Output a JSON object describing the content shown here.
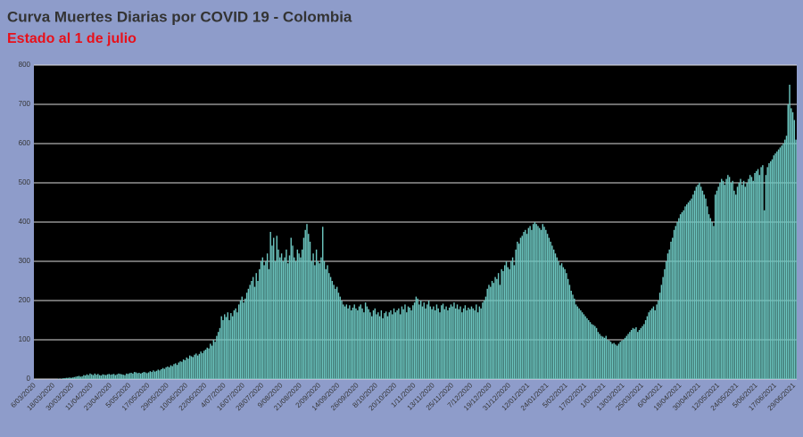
{
  "chart_data": {
    "type": "bar",
    "title": "Curva Muertes Diarias por COVID 19 - Colombia",
    "subtitle": "Estado al 1 de julio",
    "color": "#6cc6c0",
    "ylim": [
      0,
      800
    ],
    "yticks": [
      0,
      100,
      200,
      300,
      400,
      500,
      600,
      700,
      800
    ],
    "grid": true,
    "categories": [
      "6/03/2020",
      null,
      null,
      null,
      null,
      null,
      null,
      null,
      null,
      null,
      null,
      null,
      "18/03/2020",
      null,
      null,
      null,
      null,
      null,
      null,
      null,
      null,
      null,
      null,
      null,
      "30/03/2020",
      null,
      null,
      null,
      null,
      null,
      null,
      null,
      null,
      null,
      null,
      null,
      "11/04/2020",
      null,
      null,
      null,
      null,
      null,
      null,
      null,
      null,
      null,
      null,
      null,
      "23/04/2020",
      null,
      null,
      null,
      null,
      null,
      null,
      null,
      null,
      null,
      null,
      null,
      "5/05/2020",
      null,
      null,
      null,
      null,
      null,
      null,
      null,
      null,
      null,
      null,
      null,
      "17/05/2020",
      null,
      null,
      null,
      null,
      null,
      null,
      null,
      null,
      null,
      null,
      null,
      "29/05/2020",
      null,
      null,
      null,
      null,
      null,
      null,
      null,
      null,
      null,
      null,
      null,
      "10/06/2020",
      null,
      null,
      null,
      null,
      null,
      null,
      null,
      null,
      null,
      null,
      null,
      "22/06/2020",
      null,
      null,
      null,
      null,
      null,
      null,
      null,
      null,
      null,
      null,
      null,
      "4/07/2020",
      null,
      null,
      null,
      null,
      null,
      null,
      null,
      null,
      null,
      null,
      null,
      "16/07/2020",
      null,
      null,
      null,
      null,
      null,
      null,
      null,
      null,
      null,
      null,
      null,
      "28/07/2020",
      null,
      null,
      null,
      null,
      null,
      null,
      null,
      null,
      null,
      null,
      null,
      "9/08/2020",
      null,
      null,
      null,
      null,
      null,
      null,
      null,
      null,
      null,
      null,
      null,
      "21/08/2020",
      null,
      null,
      null,
      null,
      null,
      null,
      null,
      null,
      null,
      null,
      null,
      "2/09/2020",
      null,
      null,
      null,
      null,
      null,
      null,
      null,
      null,
      null,
      null,
      null,
      "14/09/2020",
      null,
      null,
      null,
      null,
      null,
      null,
      null,
      null,
      null,
      null,
      null,
      "26/09/2020",
      null,
      null,
      null,
      null,
      null,
      null,
      null,
      null,
      null,
      null,
      null,
      "8/10/2020",
      null,
      null,
      null,
      null,
      null,
      null,
      null,
      null,
      null,
      null,
      null,
      "20/10/2020",
      null,
      null,
      null,
      null,
      null,
      null,
      null,
      null,
      null,
      null,
      null,
      "1/11/2020",
      null,
      null,
      null,
      null,
      null,
      null,
      null,
      null,
      null,
      null,
      null,
      "13/11/2020",
      null,
      null,
      null,
      null,
      null,
      null,
      null,
      null,
      null,
      null,
      null,
      "25/11/2020",
      null,
      null,
      null,
      null,
      null,
      null,
      null,
      null,
      null,
      null,
      null,
      "7/12/2020",
      null,
      null,
      null,
      null,
      null,
      null,
      null,
      null,
      null,
      null,
      null,
      "19/12/2020",
      null,
      null,
      null,
      null,
      null,
      null,
      null,
      null,
      null,
      null,
      null,
      "31/12/2020",
      null,
      null,
      null,
      null,
      null,
      null,
      null,
      null,
      null,
      null,
      null,
      "12/01/2021",
      null,
      null,
      null,
      null,
      null,
      null,
      null,
      null,
      null,
      null,
      null,
      "24/01/2021",
      null,
      null,
      null,
      null,
      null,
      null,
      null,
      null,
      null,
      null,
      null,
      "5/02/2021",
      null,
      null,
      null,
      null,
      null,
      null,
      null,
      null,
      null,
      null,
      null,
      "17/02/2021",
      null,
      null,
      null,
      null,
      null,
      null,
      null,
      null,
      null,
      null,
      null,
      "1/03/2021",
      null,
      null,
      null,
      null,
      null,
      null,
      null,
      null,
      null,
      null,
      null,
      "13/03/2021",
      null,
      null,
      null,
      null,
      null,
      null,
      null,
      null,
      null,
      null,
      null,
      "25/03/2021",
      null,
      null,
      null,
      null,
      null,
      null,
      null,
      null,
      null,
      null,
      null,
      "6/04/2021",
      null,
      null,
      null,
      null,
      null,
      null,
      null,
      null,
      null,
      null,
      null,
      "18/04/2021",
      null,
      null,
      null,
      null,
      null,
      null,
      null,
      null,
      null,
      null,
      null,
      "30/04/2021",
      null,
      null,
      null,
      null,
      null,
      null,
      null,
      null,
      null,
      null,
      null,
      "12/05/2021",
      null,
      null,
      null,
      null,
      null,
      null,
      null,
      null,
      null,
      null,
      null,
      "24/05/2021",
      null,
      null,
      null,
      null,
      null,
      null,
      null,
      null,
      null,
      null,
      null,
      "5/06/2021",
      null,
      null,
      null,
      null,
      null,
      null,
      null,
      null,
      null,
      null,
      null,
      "17/06/2021",
      null,
      null,
      null,
      null,
      null,
      null,
      null,
      null,
      null,
      null,
      null,
      "29/06/2021",
      null
    ],
    "values": [
      0,
      0,
      0,
      0,
      0,
      0,
      0,
      0,
      0,
      0,
      0,
      0,
      0,
      0,
      0,
      1,
      0,
      1,
      2,
      2,
      3,
      3,
      4,
      3,
      4,
      5,
      6,
      7,
      8,
      6,
      7,
      10,
      9,
      12,
      10,
      14,
      12,
      10,
      14,
      11,
      13,
      10,
      9,
      12,
      11,
      10,
      12,
      13,
      11,
      12,
      13,
      10,
      12,
      14,
      13,
      12,
      11,
      10,
      14,
      13,
      15,
      16,
      14,
      18,
      17,
      15,
      16,
      14,
      16,
      18,
      17,
      15,
      17,
      20,
      18,
      22,
      19,
      21,
      24,
      22,
      25,
      28,
      26,
      30,
      32,
      30,
      35,
      33,
      38,
      40,
      36,
      42,
      45,
      44,
      50,
      48,
      55,
      52,
      60,
      58,
      56,
      62,
      65,
      60,
      64,
      70,
      66,
      72,
      75,
      80,
      78,
      90,
      85,
      100,
      95,
      110,
      120,
      130,
      160,
      150,
      165,
      158,
      170,
      150,
      168,
      160,
      175,
      180,
      170,
      190,
      200,
      210,
      195,
      205,
      220,
      230,
      240,
      250,
      260,
      235,
      270,
      250,
      280,
      300,
      310,
      290,
      300,
      320,
      280,
      375,
      340,
      360,
      300,
      365,
      330,
      310,
      320,
      300,
      310,
      330,
      295,
      315,
      360,
      340,
      310,
      300,
      330,
      320,
      310,
      330,
      360,
      380,
      395,
      370,
      350,
      300,
      320,
      290,
      330,
      300,
      295,
      310,
      388,
      300,
      280,
      290,
      270,
      260,
      250,
      240,
      230,
      235,
      220,
      210,
      200,
      190,
      185,
      190,
      180,
      188,
      175,
      182,
      190,
      180,
      175,
      185,
      190,
      180,
      170,
      195,
      185,
      178,
      170,
      160,
      175,
      180,
      165,
      170,
      160,
      175,
      155,
      168,
      172,
      160,
      170,
      175,
      165,
      180,
      170,
      175,
      180,
      165,
      185,
      178,
      190,
      170,
      185,
      182,
      175,
      188,
      195,
      210,
      205,
      190,
      200,
      185,
      195,
      180,
      190,
      200,
      185,
      178,
      185,
      175,
      190,
      180,
      170,
      188,
      192,
      178,
      185,
      175,
      182,
      190,
      185,
      195,
      180,
      190,
      178,
      185,
      170,
      180,
      188,
      175,
      182,
      178,
      185,
      180,
      175,
      190,
      170,
      185,
      180,
      195,
      200,
      210,
      230,
      240,
      235,
      250,
      245,
      260,
      255,
      270,
      240,
      280,
      275,
      290,
      300,
      285,
      280,
      300,
      310,
      290,
      330,
      350,
      345,
      360,
      365,
      375,
      380,
      370,
      385,
      390,
      380,
      395,
      400,
      395,
      390,
      385,
      380,
      395,
      388,
      380,
      370,
      360,
      350,
      340,
      330,
      320,
      310,
      300,
      290,
      295,
      285,
      280,
      270,
      255,
      240,
      225,
      215,
      205,
      190,
      185,
      180,
      175,
      170,
      165,
      160,
      155,
      150,
      145,
      140,
      138,
      135,
      130,
      120,
      115,
      110,
      108,
      105,
      110,
      100,
      98,
      95,
      90,
      92,
      88,
      85,
      90,
      95,
      98,
      100,
      105,
      110,
      115,
      120,
      125,
      130,
      128,
      132,
      120,
      125,
      130,
      135,
      140,
      150,
      160,
      170,
      175,
      180,
      185,
      175,
      190,
      200,
      220,
      240,
      260,
      280,
      300,
      320,
      330,
      350,
      360,
      380,
      390,
      400,
      410,
      420,
      425,
      430,
      440,
      445,
      450,
      455,
      460,
      470,
      480,
      490,
      495,
      500,
      490,
      480,
      470,
      460,
      440,
      420,
      410,
      400,
      390,
      470,
      480,
      490,
      500,
      510,
      505,
      495,
      510,
      520,
      515,
      500,
      505,
      480,
      470,
      490,
      500,
      510,
      495,
      505,
      490,
      500,
      510,
      520,
      515,
      505,
      525,
      530,
      535,
      520,
      540,
      545,
      430,
      520,
      540,
      550,
      555,
      560,
      570,
      575,
      580,
      585,
      590,
      595,
      600,
      610,
      620,
      700,
      750,
      690,
      680,
      660,
      610
    ]
  }
}
